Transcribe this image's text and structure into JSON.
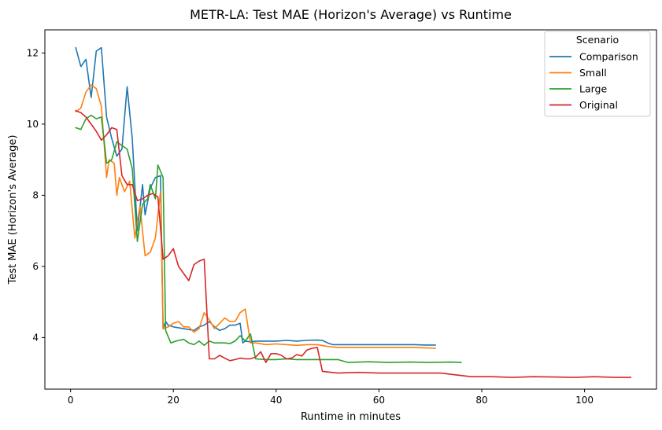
{
  "chart_data": {
    "type": "line",
    "title": "METR-LA: Test MAE (Horizon's Average) vs Runtime",
    "xlabel": "Runtime in minutes",
    "ylabel": "Test MAE (Horizon's Average)",
    "xlim": [
      -5,
      114
    ],
    "ylim": [
      2.55,
      12.65
    ],
    "xticks": [
      0,
      20,
      40,
      60,
      80,
      100
    ],
    "yticks": [
      4,
      6,
      8,
      10,
      12
    ],
    "grid": false,
    "legend": {
      "title": "Scenario",
      "placement": "top-right"
    },
    "series": [
      {
        "name": "Comparison",
        "color": "#1f77b4",
        "points": [
          [
            1,
            12.15
          ],
          [
            2,
            11.62
          ],
          [
            3,
            11.82
          ],
          [
            4,
            10.75
          ],
          [
            5,
            12.05
          ],
          [
            6,
            12.15
          ],
          [
            7,
            10.2
          ],
          [
            8,
            9.6
          ],
          [
            9,
            9.1
          ],
          [
            10,
            9.3
          ],
          [
            11,
            11.05
          ],
          [
            12,
            9.6
          ],
          [
            13,
            7.0
          ],
          [
            14,
            8.3
          ],
          [
            14.5,
            7.45
          ],
          [
            15.5,
            8.2
          ],
          [
            16.5,
            8.5
          ],
          [
            17.5,
            8.55
          ],
          [
            18,
            4.25
          ],
          [
            18.5,
            4.45
          ],
          [
            19,
            4.35
          ],
          [
            20,
            4.3
          ],
          [
            22,
            4.25
          ],
          [
            24,
            4.2
          ],
          [
            25,
            4.3
          ],
          [
            26,
            4.35
          ],
          [
            27,
            4.45
          ],
          [
            28,
            4.3
          ],
          [
            29,
            4.2
          ],
          [
            30,
            4.25
          ],
          [
            31,
            4.35
          ],
          [
            32,
            4.35
          ],
          [
            33,
            4.4
          ],
          [
            33.5,
            3.85
          ],
          [
            34,
            3.9
          ],
          [
            35,
            3.88
          ],
          [
            36,
            3.9
          ],
          [
            38,
            3.9
          ],
          [
            40,
            3.9
          ],
          [
            42,
            3.92
          ],
          [
            44,
            3.9
          ],
          [
            46,
            3.92
          ],
          [
            48,
            3.93
          ],
          [
            49,
            3.92
          ],
          [
            50,
            3.85
          ],
          [
            51,
            3.8
          ],
          [
            53,
            3.8
          ],
          [
            55,
            3.8
          ],
          [
            57,
            3.8
          ],
          [
            59,
            3.8
          ],
          [
            61,
            3.8
          ],
          [
            63,
            3.8
          ],
          [
            65,
            3.8
          ],
          [
            67,
            3.8
          ],
          [
            69,
            3.79
          ],
          [
            71,
            3.79
          ]
        ]
      },
      {
        "name": "Small",
        "color": "#ff7f0e",
        "points": [
          [
            1,
            10.35
          ],
          [
            2,
            10.45
          ],
          [
            3,
            10.9
          ],
          [
            4,
            11.1
          ],
          [
            5,
            11.0
          ],
          [
            6,
            10.5
          ],
          [
            7,
            8.5
          ],
          [
            7.5,
            9.0
          ],
          [
            8.5,
            8.9
          ],
          [
            9,
            8.0
          ],
          [
            9.5,
            8.5
          ],
          [
            10.5,
            8.1
          ],
          [
            11.5,
            8.4
          ],
          [
            12.5,
            6.8
          ],
          [
            13.5,
            7.7
          ],
          [
            14.5,
            6.3
          ],
          [
            15.5,
            6.4
          ],
          [
            16.5,
            6.8
          ],
          [
            17.5,
            8.1
          ],
          [
            18,
            4.25
          ],
          [
            19,
            4.3
          ],
          [
            20,
            4.4
          ],
          [
            21,
            4.45
          ],
          [
            22,
            4.3
          ],
          [
            23,
            4.3
          ],
          [
            24,
            4.15
          ],
          [
            25,
            4.25
          ],
          [
            26,
            4.7
          ],
          [
            27,
            4.5
          ],
          [
            28,
            4.25
          ],
          [
            29,
            4.4
          ],
          [
            30,
            4.55
          ],
          [
            31,
            4.45
          ],
          [
            32,
            4.45
          ],
          [
            33,
            4.7
          ],
          [
            34,
            4.8
          ],
          [
            35,
            3.85
          ],
          [
            36,
            3.85
          ],
          [
            38,
            3.8
          ],
          [
            40,
            3.82
          ],
          [
            42,
            3.8
          ],
          [
            44,
            3.78
          ],
          [
            46,
            3.8
          ],
          [
            48,
            3.8
          ],
          [
            50,
            3.75
          ],
          [
            52,
            3.72
          ],
          [
            55,
            3.72
          ],
          [
            58,
            3.72
          ],
          [
            61,
            3.72
          ],
          [
            64,
            3.72
          ],
          [
            67,
            3.72
          ],
          [
            71,
            3.7
          ]
        ]
      },
      {
        "name": "Large",
        "color": "#2ca02c",
        "points": [
          [
            1,
            9.9
          ],
          [
            2,
            9.85
          ],
          [
            3,
            10.15
          ],
          [
            4,
            10.25
          ],
          [
            5,
            10.15
          ],
          [
            6,
            10.2
          ],
          [
            7,
            8.9
          ],
          [
            8,
            9.0
          ],
          [
            9,
            9.5
          ],
          [
            10,
            9.4
          ],
          [
            11,
            9.3
          ],
          [
            12,
            8.75
          ],
          [
            13,
            6.7
          ],
          [
            14,
            7.75
          ],
          [
            15,
            7.9
          ],
          [
            15.5,
            8.3
          ],
          [
            16.5,
            7.9
          ],
          [
            17,
            8.85
          ],
          [
            18,
            8.5
          ],
          [
            18.5,
            4.2
          ],
          [
            19.5,
            3.85
          ],
          [
            20.5,
            3.9
          ],
          [
            22,
            3.95
          ],
          [
            23,
            3.85
          ],
          [
            24,
            3.8
          ],
          [
            25,
            3.9
          ],
          [
            26,
            3.78
          ],
          [
            27,
            3.9
          ],
          [
            28,
            3.85
          ],
          [
            29,
            3.85
          ],
          [
            30,
            3.85
          ],
          [
            31,
            3.83
          ],
          [
            32,
            3.9
          ],
          [
            33,
            4.05
          ],
          [
            34,
            3.9
          ],
          [
            35,
            4.1
          ],
          [
            36,
            3.4
          ],
          [
            38,
            3.38
          ],
          [
            40,
            3.38
          ],
          [
            42,
            3.4
          ],
          [
            44,
            3.38
          ],
          [
            46,
            3.38
          ],
          [
            48,
            3.38
          ],
          [
            50,
            3.38
          ],
          [
            52,
            3.38
          ],
          [
            54,
            3.3
          ],
          [
            58,
            3.32
          ],
          [
            62,
            3.3
          ],
          [
            66,
            3.31
          ],
          [
            70,
            3.3
          ],
          [
            74,
            3.31
          ],
          [
            76,
            3.3
          ]
        ]
      },
      {
        "name": "Original",
        "color": "#d62728",
        "points": [
          [
            1,
            10.38
          ],
          [
            2,
            10.32
          ],
          [
            3,
            10.2
          ],
          [
            4,
            10.0
          ],
          [
            5,
            9.8
          ],
          [
            6,
            9.55
          ],
          [
            7,
            9.7
          ],
          [
            8,
            9.9
          ],
          [
            9,
            9.85
          ],
          [
            10,
            8.55
          ],
          [
            11,
            8.3
          ],
          [
            12,
            8.3
          ],
          [
            13,
            7.85
          ],
          [
            14,
            7.9
          ],
          [
            15,
            8.0
          ],
          [
            16,
            8.05
          ],
          [
            17,
            7.95
          ],
          [
            18,
            6.2
          ],
          [
            19,
            6.3
          ],
          [
            20,
            6.5
          ],
          [
            21,
            6.0
          ],
          [
            22,
            5.8
          ],
          [
            23,
            5.6
          ],
          [
            24,
            6.05
          ],
          [
            25,
            6.15
          ],
          [
            26,
            6.2
          ],
          [
            27,
            3.4
          ],
          [
            28,
            3.4
          ],
          [
            29,
            3.5
          ],
          [
            30,
            3.42
          ],
          [
            31,
            3.35
          ],
          [
            32,
            3.38
          ],
          [
            33,
            3.42
          ],
          [
            34,
            3.4
          ],
          [
            35,
            3.4
          ],
          [
            36,
            3.45
          ],
          [
            37,
            3.6
          ],
          [
            38,
            3.3
          ],
          [
            39,
            3.55
          ],
          [
            40,
            3.55
          ],
          [
            41,
            3.5
          ],
          [
            42,
            3.4
          ],
          [
            43,
            3.42
          ],
          [
            44,
            3.52
          ],
          [
            45,
            3.48
          ],
          [
            46,
            3.65
          ],
          [
            47,
            3.7
          ],
          [
            48,
            3.72
          ],
          [
            49,
            3.05
          ],
          [
            52,
            3.0
          ],
          [
            56,
            3.02
          ],
          [
            60,
            3.0
          ],
          [
            64,
            3.0
          ],
          [
            68,
            3.0
          ],
          [
            72,
            3.0
          ],
          [
            75,
            2.95
          ],
          [
            78,
            2.9
          ],
          [
            82,
            2.9
          ],
          [
            86,
            2.88
          ],
          [
            90,
            2.9
          ],
          [
            94,
            2.89
          ],
          [
            98,
            2.88
          ],
          [
            102,
            2.9
          ],
          [
            106,
            2.88
          ],
          [
            109,
            2.88
          ]
        ]
      }
    ]
  }
}
